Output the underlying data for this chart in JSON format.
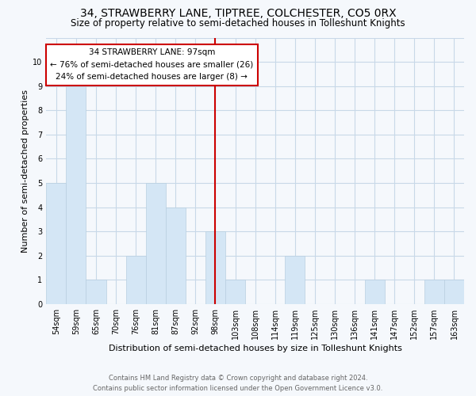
{
  "title": "34, STRAWBERRY LANE, TIPTREE, COLCHESTER, CO5 0RX",
  "subtitle": "Size of property relative to semi-detached houses in Tolleshunt Knights",
  "xlabel": "Distribution of semi-detached houses by size in Tolleshunt Knights",
  "ylabel": "Number of semi-detached properties",
  "footer_line1": "Contains HM Land Registry data © Crown copyright and database right 2024.",
  "footer_line2": "Contains public sector information licensed under the Open Government Licence v3.0.",
  "categories": [
    "54sqm",
    "59sqm",
    "65sqm",
    "70sqm",
    "76sqm",
    "81sqm",
    "87sqm",
    "92sqm",
    "98sqm",
    "103sqm",
    "108sqm",
    "114sqm",
    "119sqm",
    "125sqm",
    "130sqm",
    "136sqm",
    "141sqm",
    "147sqm",
    "152sqm",
    "157sqm",
    "163sqm"
  ],
  "values": [
    5,
    9,
    1,
    0,
    2,
    5,
    4,
    0,
    3,
    1,
    0,
    0,
    2,
    0,
    0,
    0,
    1,
    0,
    0,
    1,
    1
  ],
  "bar_color": "#d4e6f5",
  "bar_edgecolor": "#b8cfe0",
  "property_line_index": 8,
  "property_label": "34 STRAWBERRY LANE: 97sqm",
  "annotation_line1": "← 76% of semi-detached houses are smaller (26)",
  "annotation_line2": "24% of semi-detached houses are larger (8) →",
  "annotation_box_edgecolor": "#cc0000",
  "vline_color": "#cc0000",
  "ylim_max": 11,
  "grid_color": "#c8d8e8",
  "background_color": "#f5f8fc",
  "title_fontsize": 10,
  "subtitle_fontsize": 8.5,
  "axis_label_fontsize": 8,
  "tick_fontsize": 7,
  "annot_fontsize": 7.5,
  "footer_fontsize": 6
}
